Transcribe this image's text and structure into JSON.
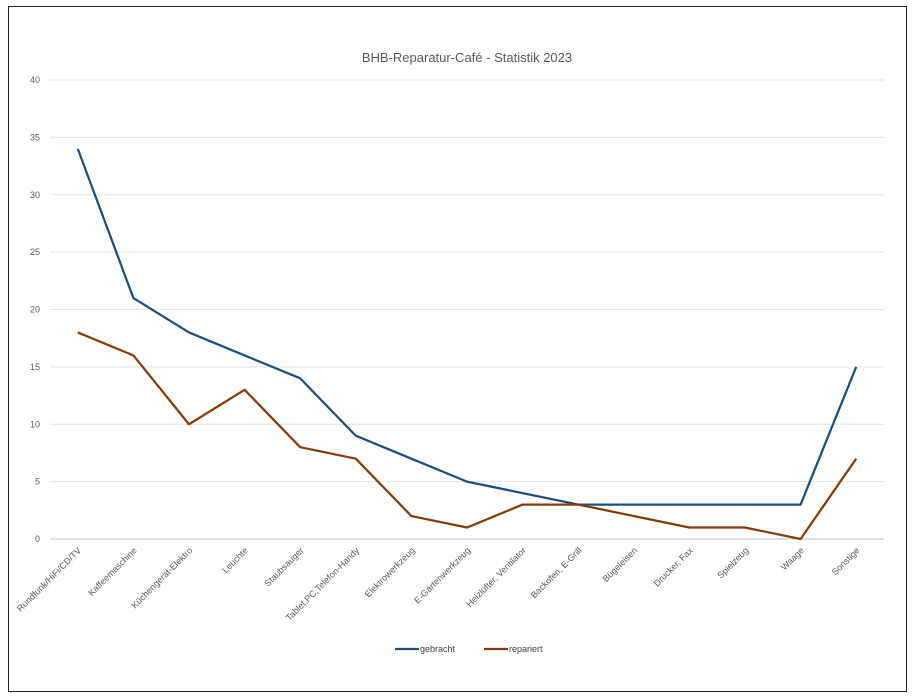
{
  "chart_data": {
    "type": "line",
    "title": "BHB-Reparatur-Café - Statistik 2023",
    "xlabel": "",
    "ylabel": "",
    "ylim": [
      0,
      40
    ],
    "yticks": [
      0,
      5,
      10,
      15,
      20,
      25,
      30,
      35,
      40
    ],
    "grid": true,
    "legend_position": "bottom",
    "categories": [
      "Rundfunk/HiFi/CD/TV",
      "Kaffeemaschine",
      "Küchengerät-Elektro",
      "Leuchte",
      "Staubsauger",
      "Tablet,PC,Telefon-Handy",
      "Elektrowerkzeug",
      "E-Gartenwerkzeug",
      "Heizlüfter, Ventilator",
      "Backofen, E-Grill",
      "Bügeleisen",
      "Drucker, Fax",
      "Spielzeug",
      "Waage",
      "Sonstige"
    ],
    "series": [
      {
        "name": "gebracht",
        "color": "#1f4e79",
        "values": [
          34,
          21,
          18,
          16,
          14,
          9,
          7,
          5,
          4,
          3,
          3,
          3,
          3,
          3,
          15
        ]
      },
      {
        "name": "repariert",
        "color": "#843c0c",
        "values": [
          18,
          16,
          10,
          13,
          8,
          7,
          2,
          1,
          3,
          3,
          2,
          1,
          1,
          0,
          7
        ]
      }
    ]
  }
}
